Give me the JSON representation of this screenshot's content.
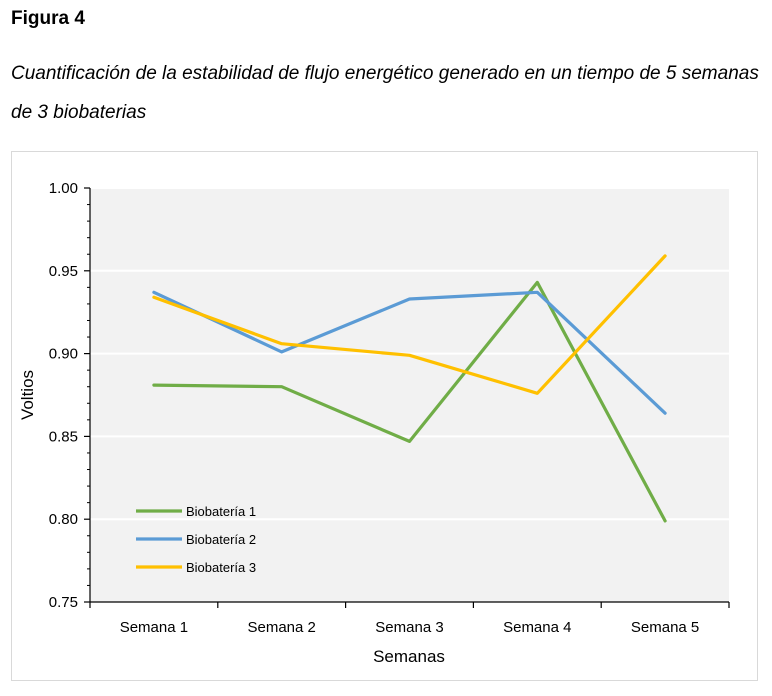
{
  "figure": {
    "label": "Figura 4",
    "caption": "Cuantificación de la estabilidad de flujo energético generado en un tiempo de 5 semanas de 3 biobaterias"
  },
  "chart_data": {
    "type": "line",
    "title": "",
    "xlabel": "Semanas",
    "ylabel": "Voltios",
    "categories": [
      "Semana 1",
      "Semana 2",
      "Semana 3",
      "Semana 4",
      "Semana 5"
    ],
    "ylim": [
      0.75,
      1.0
    ],
    "yticks": [
      "0.75",
      "0.80",
      "0.85",
      "0.90",
      "0.95",
      "1.00"
    ],
    "grid": true,
    "legend_position": "bottom-left",
    "series": [
      {
        "name": "Biobatería 1",
        "color": "#70ad47",
        "values": [
          0.881,
          0.88,
          0.847,
          0.943,
          0.799
        ]
      },
      {
        "name": "Biobatería 2",
        "color": "#5b9bd5",
        "values": [
          0.937,
          0.901,
          0.933,
          0.937,
          0.864
        ]
      },
      {
        "name": "Biobatería 3",
        "color": "#ffc000",
        "values": [
          0.934,
          0.906,
          0.899,
          0.876,
          0.959
        ]
      }
    ]
  }
}
